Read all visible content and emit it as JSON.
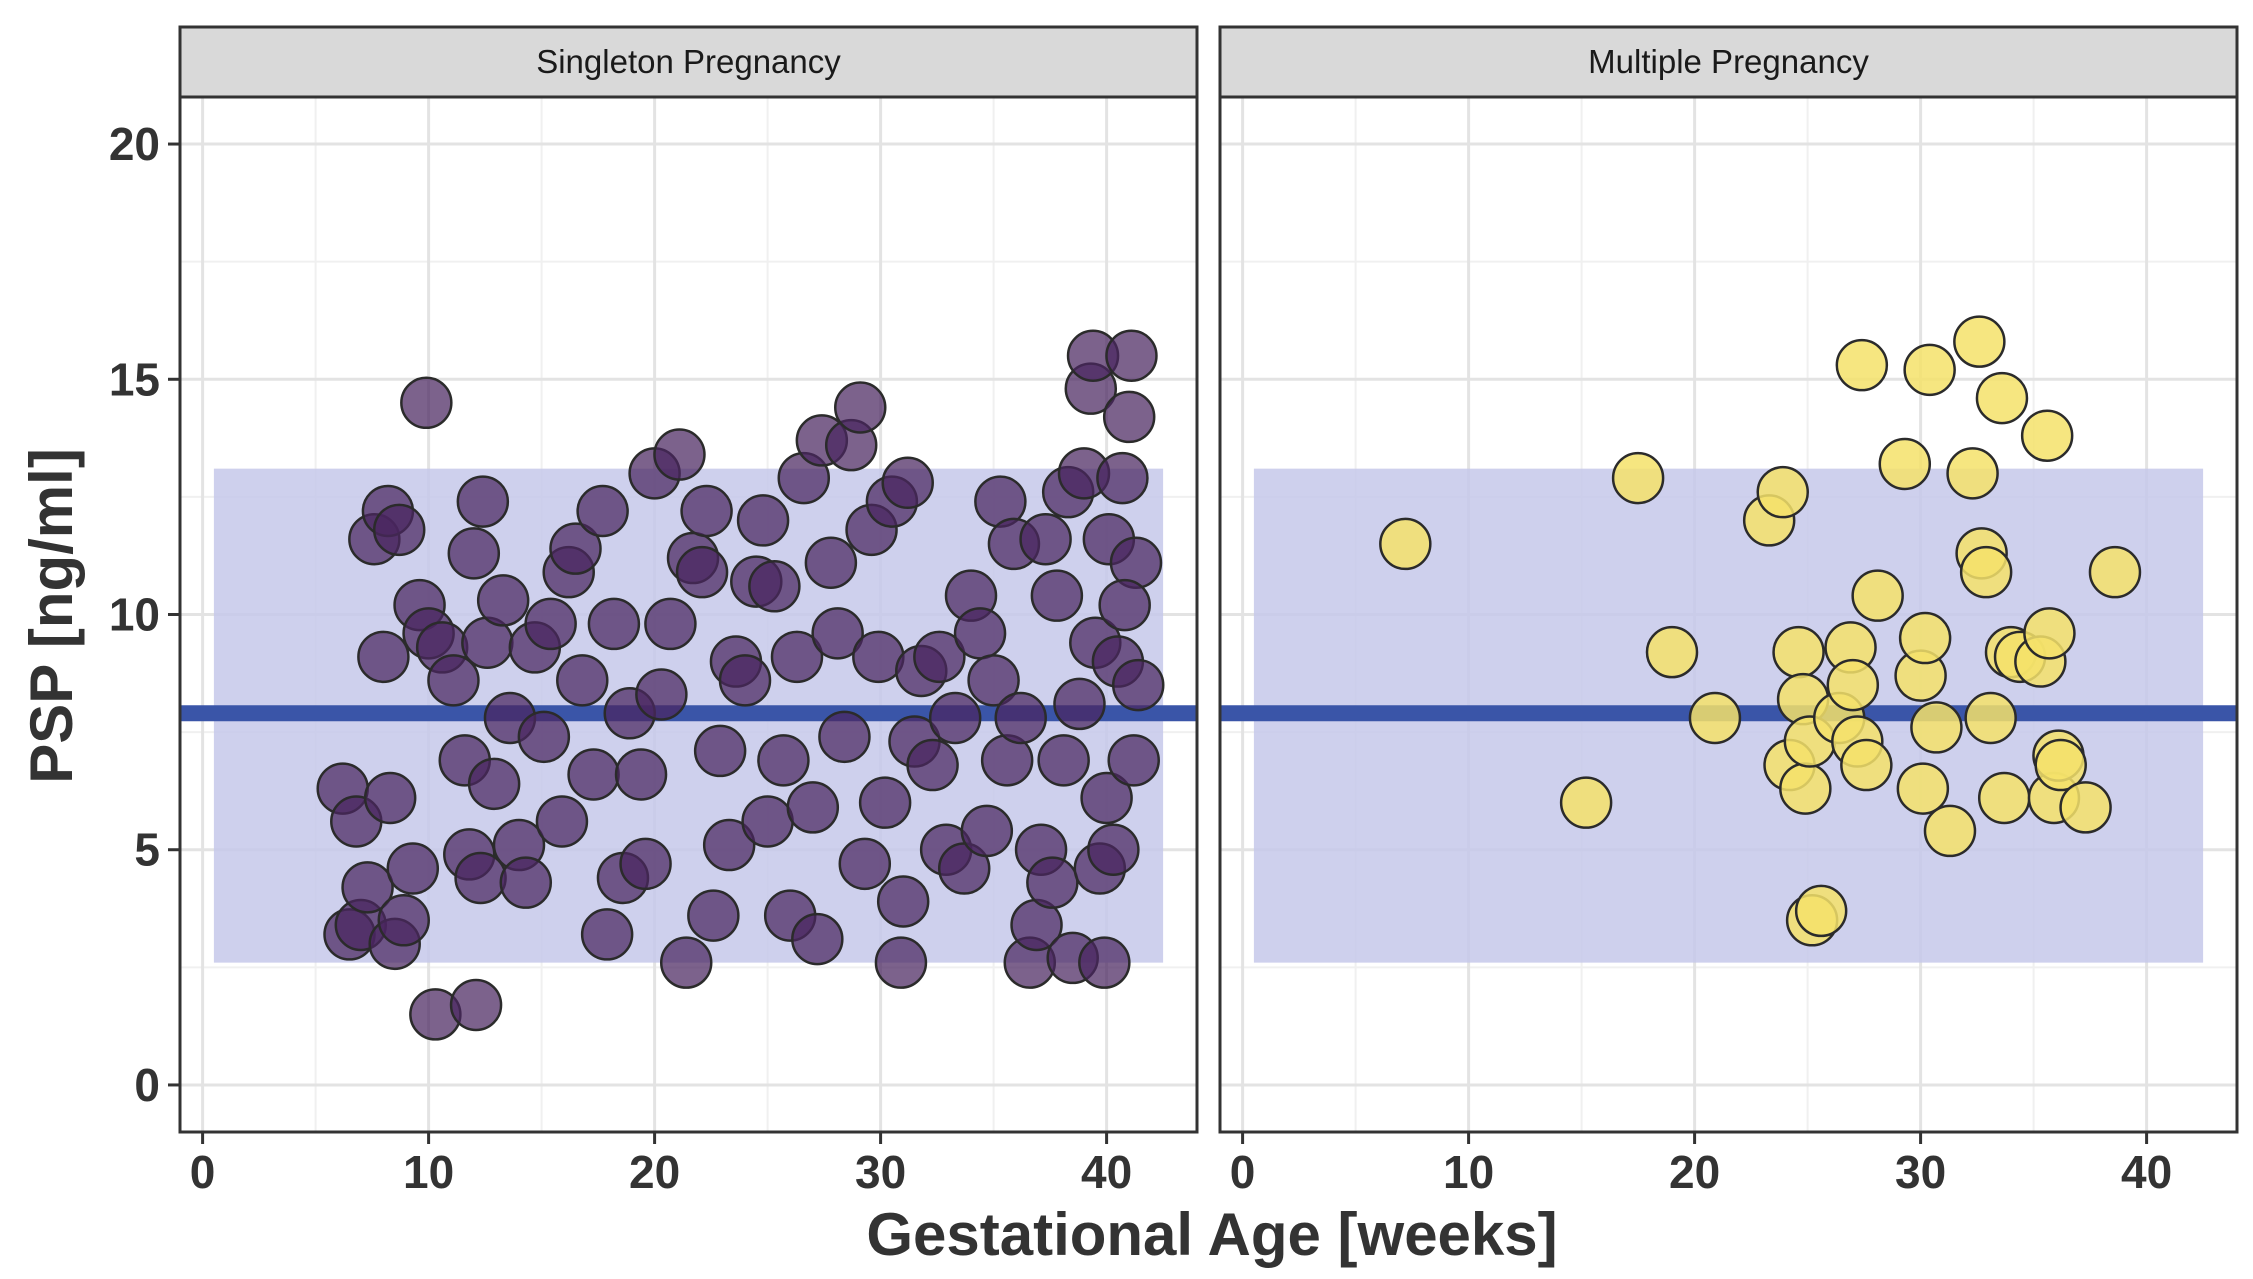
{
  "chart_data": {
    "type": "scatter",
    "xlabel": "Gestational Age [weeks]",
    "ylabel": "PSP [ng/ml]",
    "xlim": [
      -1,
      44
    ],
    "ylim": [
      -1,
      21
    ],
    "x_ticks": [
      0,
      10,
      20,
      30,
      40
    ],
    "y_ticks": [
      0,
      5,
      10,
      15,
      20
    ],
    "reference_line": {
      "y": 7.9,
      "color": "#3a55a8"
    },
    "reference_band": {
      "x_range": [
        0.5,
        42.5
      ],
      "y_range": [
        2.6,
        13.1
      ],
      "color": "#c5c8ea"
    },
    "facets": [
      {
        "strip_label": "Singleton Pregnancy",
        "point_fill": "#4a2660",
        "point_opacity": 0.72,
        "points": [
          [
            6.2,
            6.3
          ],
          [
            6.5,
            3.2
          ],
          [
            7.0,
            3.4
          ],
          [
            6.8,
            5.6
          ],
          [
            7.3,
            4.2
          ],
          [
            7.6,
            11.6
          ],
          [
            8.2,
            12.2
          ],
          [
            8.7,
            11.8
          ],
          [
            8.0,
            9.1
          ],
          [
            8.3,
            6.1
          ],
          [
            8.5,
            3.0
          ],
          [
            8.9,
            3.5
          ],
          [
            9.3,
            4.6
          ],
          [
            9.6,
            10.2
          ],
          [
            10.0,
            9.6
          ],
          [
            10.3,
            1.5
          ],
          [
            9.9,
            14.5
          ],
          [
            10.6,
            9.3
          ],
          [
            11.1,
            8.6
          ],
          [
            11.6,
            6.9
          ],
          [
            12.0,
            11.3
          ],
          [
            12.4,
            12.4
          ],
          [
            12.1,
            1.7
          ],
          [
            12.6,
            9.4
          ],
          [
            12.9,
            6.4
          ],
          [
            11.8,
            4.9
          ],
          [
            12.3,
            4.4
          ],
          [
            13.3,
            10.3
          ],
          [
            13.6,
            7.8
          ],
          [
            14.0,
            5.1
          ],
          [
            14.3,
            4.3
          ],
          [
            14.7,
            9.3
          ],
          [
            15.1,
            7.4
          ],
          [
            15.4,
            9.8
          ],
          [
            15.9,
            5.6
          ],
          [
            16.2,
            10.9
          ],
          [
            16.5,
            11.4
          ],
          [
            16.8,
            8.6
          ],
          [
            17.3,
            6.6
          ],
          [
            17.7,
            12.2
          ],
          [
            17.9,
            3.2
          ],
          [
            18.2,
            9.8
          ],
          [
            18.6,
            4.4
          ],
          [
            18.9,
            7.9
          ],
          [
            19.4,
            6.6
          ],
          [
            19.6,
            4.7
          ],
          [
            20.0,
            13.0
          ],
          [
            20.3,
            8.3
          ],
          [
            20.7,
            9.8
          ],
          [
            21.1,
            13.4
          ],
          [
            21.4,
            2.6
          ],
          [
            21.7,
            11.2
          ],
          [
            22.1,
            10.9
          ],
          [
            22.3,
            12.2
          ],
          [
            22.6,
            3.6
          ],
          [
            22.9,
            7.1
          ],
          [
            23.3,
            5.1
          ],
          [
            23.6,
            9.0
          ],
          [
            24.0,
            8.6
          ],
          [
            24.5,
            10.7
          ],
          [
            24.8,
            12.0
          ],
          [
            25.0,
            5.6
          ],
          [
            25.3,
            10.6
          ],
          [
            25.7,
            6.9
          ],
          [
            26.0,
            3.6
          ],
          [
            26.3,
            9.1
          ],
          [
            26.6,
            12.9
          ],
          [
            27.0,
            5.9
          ],
          [
            27.2,
            3.1
          ],
          [
            27.4,
            13.7
          ],
          [
            27.8,
            11.1
          ],
          [
            28.1,
            9.6
          ],
          [
            28.4,
            7.4
          ],
          [
            28.7,
            13.6
          ],
          [
            29.1,
            14.4
          ],
          [
            29.3,
            4.7
          ],
          [
            29.6,
            11.8
          ],
          [
            29.9,
            9.1
          ],
          [
            30.2,
            6.0
          ],
          [
            30.5,
            12.4
          ],
          [
            30.9,
            2.6
          ],
          [
            31.0,
            3.9
          ],
          [
            31.2,
            12.8
          ],
          [
            31.5,
            7.3
          ],
          [
            31.8,
            8.8
          ],
          [
            32.3,
            6.8
          ],
          [
            32.6,
            9.1
          ],
          [
            32.9,
            5.0
          ],
          [
            33.3,
            7.8
          ],
          [
            33.7,
            4.6
          ],
          [
            34.0,
            10.4
          ],
          [
            34.4,
            9.6
          ],
          [
            34.7,
            5.4
          ],
          [
            35.0,
            8.6
          ],
          [
            35.3,
            12.4
          ],
          [
            35.6,
            6.9
          ],
          [
            35.9,
            11.5
          ],
          [
            36.2,
            7.8
          ],
          [
            36.6,
            2.6
          ],
          [
            36.9,
            3.4
          ],
          [
            37.1,
            5.0
          ],
          [
            37.3,
            11.6
          ],
          [
            37.6,
            4.3
          ],
          [
            37.8,
            10.4
          ],
          [
            38.1,
            6.9
          ],
          [
            38.3,
            12.6
          ],
          [
            38.5,
            2.7
          ],
          [
            38.8,
            8.1
          ],
          [
            39.0,
            13.0
          ],
          [
            39.3,
            14.8
          ],
          [
            39.4,
            15.5
          ],
          [
            39.5,
            9.4
          ],
          [
            39.7,
            4.6
          ],
          [
            39.9,
            2.6
          ],
          [
            40.0,
            6.1
          ],
          [
            40.1,
            11.6
          ],
          [
            40.3,
            5.0
          ],
          [
            40.5,
            9.0
          ],
          [
            40.7,
            12.9
          ],
          [
            41.0,
            14.2
          ],
          [
            41.1,
            15.5
          ],
          [
            41.3,
            11.1
          ],
          [
            41.4,
            8.5
          ],
          [
            41.2,
            6.9
          ],
          [
            40.8,
            10.2
          ]
        ]
      },
      {
        "strip_label": "Multiple Pregnancy",
        "point_fill": "#f5e26a",
        "point_opacity": 0.85,
        "points": [
          [
            7.2,
            11.5
          ],
          [
            15.2,
            6.0
          ],
          [
            17.5,
            12.9
          ],
          [
            19.0,
            9.2
          ],
          [
            20.9,
            7.8
          ],
          [
            23.3,
            12.0
          ],
          [
            23.9,
            12.6
          ],
          [
            24.2,
            6.8
          ],
          [
            24.6,
            9.2
          ],
          [
            24.8,
            8.2
          ],
          [
            24.9,
            6.3
          ],
          [
            25.1,
            7.3
          ],
          [
            25.2,
            3.5
          ],
          [
            25.6,
            3.7
          ],
          [
            26.4,
            7.8
          ],
          [
            26.9,
            9.3
          ],
          [
            27.0,
            8.5
          ],
          [
            27.2,
            7.3
          ],
          [
            27.4,
            15.3
          ],
          [
            27.6,
            6.8
          ],
          [
            28.1,
            10.4
          ],
          [
            29.3,
            13.2
          ],
          [
            30.0,
            8.7
          ],
          [
            30.2,
            9.5
          ],
          [
            30.4,
            15.2
          ],
          [
            30.1,
            6.3
          ],
          [
            30.7,
            7.6
          ],
          [
            31.3,
            5.4
          ],
          [
            32.3,
            13.0
          ],
          [
            32.6,
            15.8
          ],
          [
            32.7,
            11.3
          ],
          [
            32.9,
            10.9
          ],
          [
            33.1,
            7.8
          ],
          [
            33.6,
            14.6
          ],
          [
            33.7,
            6.1
          ],
          [
            34.0,
            9.2
          ],
          [
            34.4,
            9.1
          ],
          [
            35.3,
            9.0
          ],
          [
            35.6,
            13.8
          ],
          [
            35.7,
            9.6
          ],
          [
            35.9,
            6.1
          ],
          [
            36.1,
            7.0
          ],
          [
            36.2,
            6.8
          ],
          [
            37.3,
            5.9
          ],
          [
            38.6,
            10.9
          ]
        ]
      }
    ]
  }
}
